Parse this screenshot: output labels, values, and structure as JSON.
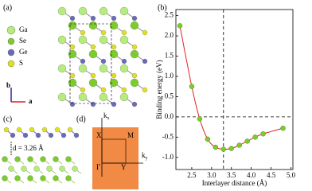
{
  "chart_data": {
    "type": "line",
    "xlabel": "Interlayer distance (Å)",
    "ylabel": "Binding energy (eV)",
    "x": [
      2.2,
      2.5,
      2.7,
      2.9,
      3.1,
      3.3,
      3.5,
      3.7,
      3.9,
      4.1,
      4.3,
      4.8
    ],
    "values": [
      2.25,
      0.75,
      -0.05,
      -0.55,
      -0.75,
      -0.8,
      -0.78,
      -0.7,
      -0.6,
      -0.5,
      -0.42,
      -0.28
    ],
    "color": "#e02020",
    "marker_color": "#7ccc2a",
    "xlim": [
      2.1,
      5.05
    ],
    "ylim": [
      -1.3,
      2.65
    ],
    "xticks": [
      2.5,
      {
        "value": 3,
        "label": "3.0"
      },
      3.5,
      {
        "value": 4,
        "label": "4.0"
      },
      4.5,
      {
        "value": 5,
        "label": "5.0"
      }
    ],
    "yticks": [
      2.5,
      {
        "value": 2,
        "label": "2.0"
      },
      1.5,
      {
        "value": 1,
        "label": "1.0"
      },
      0.5,
      {
        "value": 0,
        "label": "0.0"
      },
      -0.5,
      {
        "value": -1,
        "label": "-1.0"
      }
    ],
    "reference_lines": {
      "x": 3.3,
      "y": 0
    }
  },
  "panels": {
    "a": {
      "label": "(a)",
      "legend": [
        {
          "label": "Ga",
          "color": "#b6ec7c"
        },
        {
          "label": "Se",
          "color": "#7ccc2a"
        },
        {
          "label": "Ge",
          "color": "#6a6ab8"
        },
        {
          "label": "S",
          "color": "#e0e020"
        }
      ],
      "axis_b": "b",
      "axis_a": "a"
    },
    "b": {
      "label": "(b)"
    },
    "c": {
      "label": "(c)",
      "distance": "d = 3.26 Å"
    },
    "d": {
      "label": "(d)",
      "kx": {
        "main": "k",
        "sub": "x"
      },
      "ky": {
        "main": "k",
        "sub": "y"
      },
      "points": [
        "X",
        "M",
        "Γ",
        "Y"
      ]
    }
  }
}
